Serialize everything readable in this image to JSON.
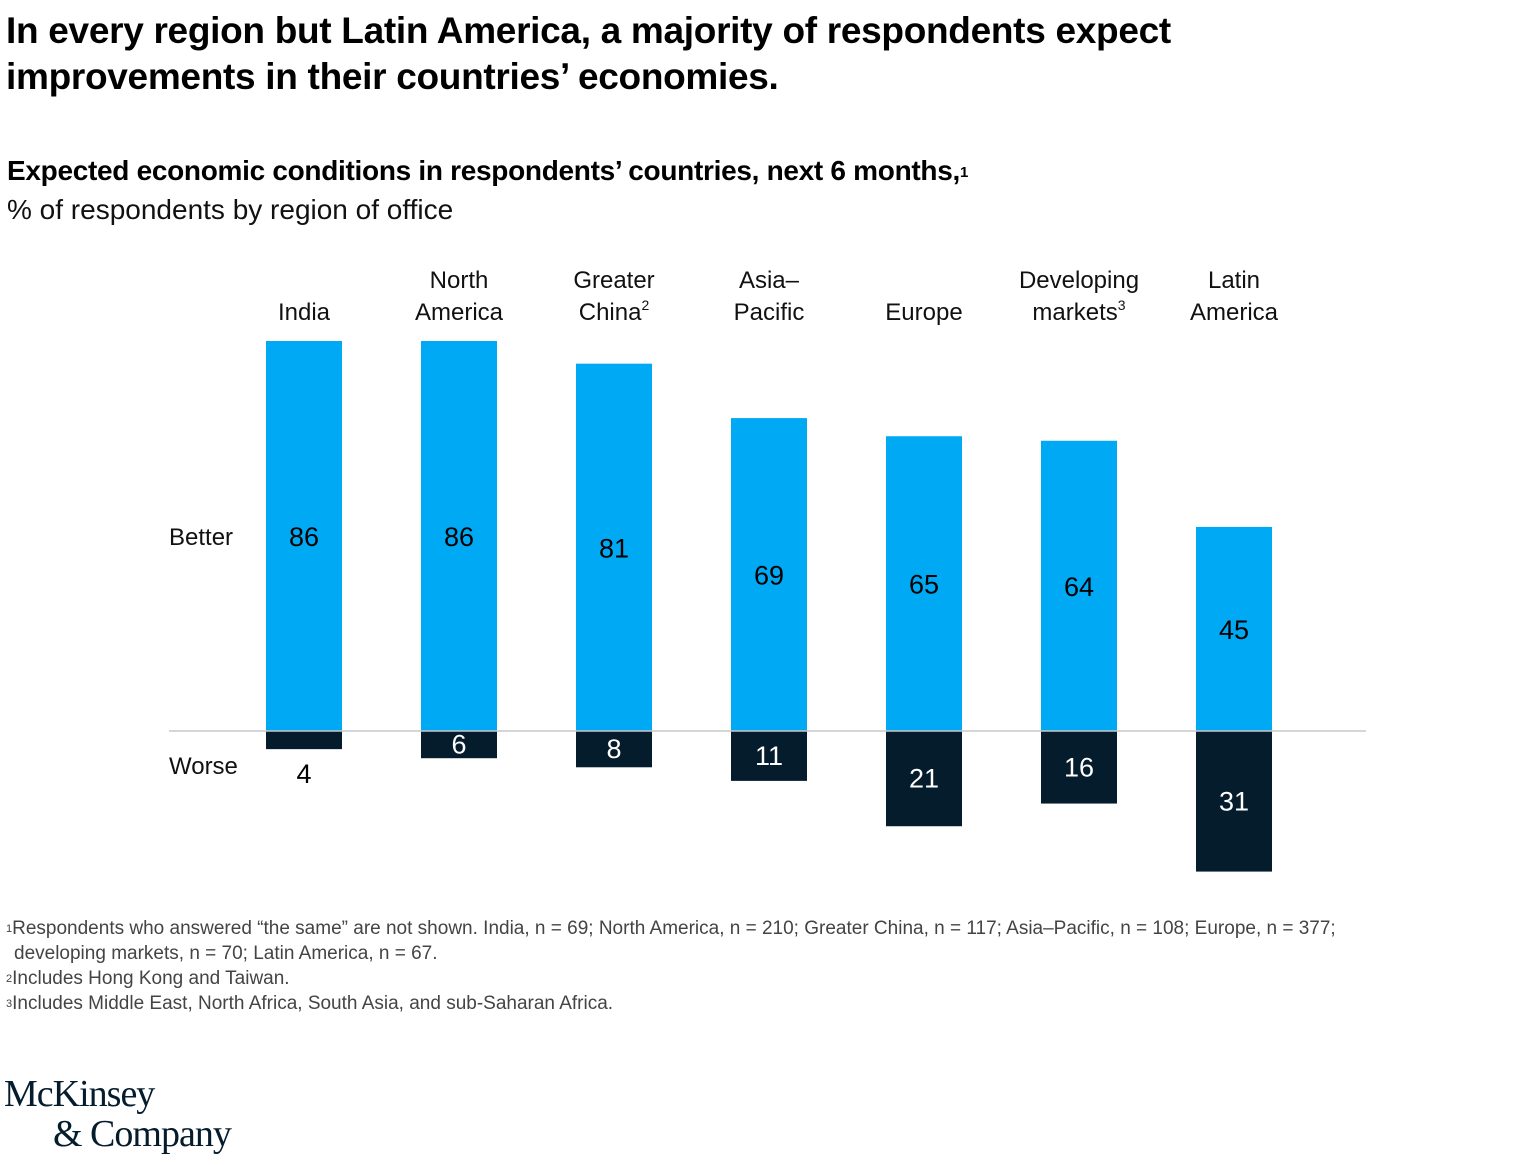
{
  "header": {
    "title": "In every region but Latin America, a majority of respondents expect improvements in their countries’ economies.",
    "subtitle": "Expected economic conditions in respondents’ countries, next 6 months,",
    "subtitle_footnote_mark": "1",
    "unit": "% of respondents by region of office"
  },
  "colors": {
    "better": "#00a9f4",
    "worse": "#051c2c",
    "baseline": "#c8c8c8",
    "label_on_better": "#000000",
    "label_on_worse": "#ffffff"
  },
  "chart_data": {
    "type": "bar",
    "title": "Expected economic conditions in respondents’ countries, next 6 months",
    "subtitle": "% of respondents by region of office",
    "categories": [
      {
        "line1": "",
        "line2": "India",
        "sup": ""
      },
      {
        "line1": "North",
        "line2": "America",
        "sup": ""
      },
      {
        "line1": "Greater",
        "line2": "China",
        "sup": "2"
      },
      {
        "line1": "Asia–",
        "line2": "Pacific",
        "sup": ""
      },
      {
        "line1": "",
        "line2": "Europe",
        "sup": ""
      },
      {
        "line1": "Developing",
        "line2": "markets",
        "sup": "3"
      },
      {
        "line1": "Latin",
        "line2": "America",
        "sup": ""
      }
    ],
    "series": [
      {
        "name": "Better",
        "values": [
          86,
          86,
          81,
          69,
          65,
          64,
          45
        ]
      },
      {
        "name": "Worse",
        "values": [
          4,
          6,
          8,
          11,
          21,
          16,
          31
        ]
      }
    ],
    "xlabel": "",
    "ylabel": "",
    "ylim": [
      -31,
      86
    ],
    "grid": false,
    "legend": "row labels at left"
  },
  "footnotes": {
    "fn1_mark": "1",
    "fn1_line1": "Respondents who answered “the same” are not shown. India, n = 69; North America, n = 210; Greater China, n = 117; Asia–Pacific, n = 108; Europe, n = 377;",
    "fn1_line2": "developing markets, n = 70; Latin America, n = 67.",
    "fn2_mark": "2",
    "fn2": "Includes Hong Kong and Taiwan.",
    "fn3_mark": "3",
    "fn3": "Includes Middle East, North Africa, South Asia, and sub-Saharan Africa."
  },
  "logo": {
    "line1": "McKinsey",
    "line2": "& Company"
  }
}
